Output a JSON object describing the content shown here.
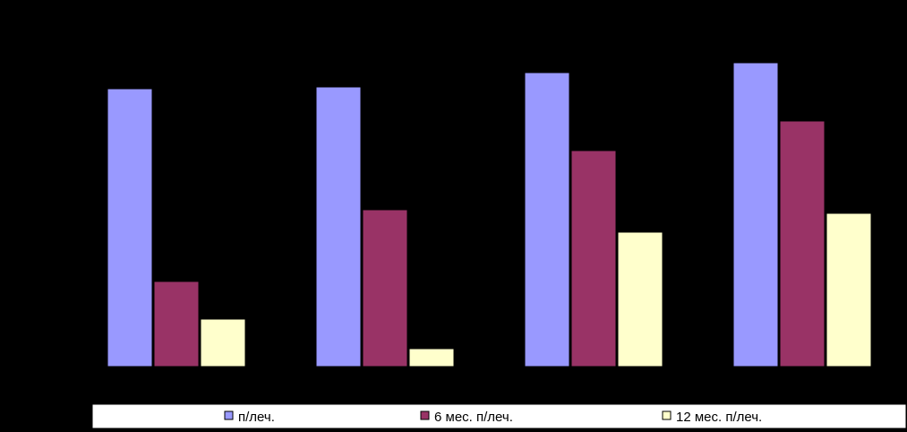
{
  "chart_data": {
    "type": "bar",
    "categories": [
      "",
      "",
      "",
      ""
    ],
    "series": [
      {
        "name": "п/леч.",
        "color": "#9999FF",
        "values": [
          310,
          312,
          328,
          339
        ]
      },
      {
        "name": "6 мес. п/леч.",
        "color": "#993366",
        "values": [
          95,
          175,
          241,
          274
        ]
      },
      {
        "name": "12 мес. п/леч.",
        "color": "#FFFFCC",
        "values": [
          53,
          20,
          150,
          171
        ]
      }
    ],
    "ylim": [
      0,
      360
    ],
    "grid": false,
    "legend_position": "bottom",
    "title": "",
    "xlabel": "",
    "ylabel": ""
  }
}
